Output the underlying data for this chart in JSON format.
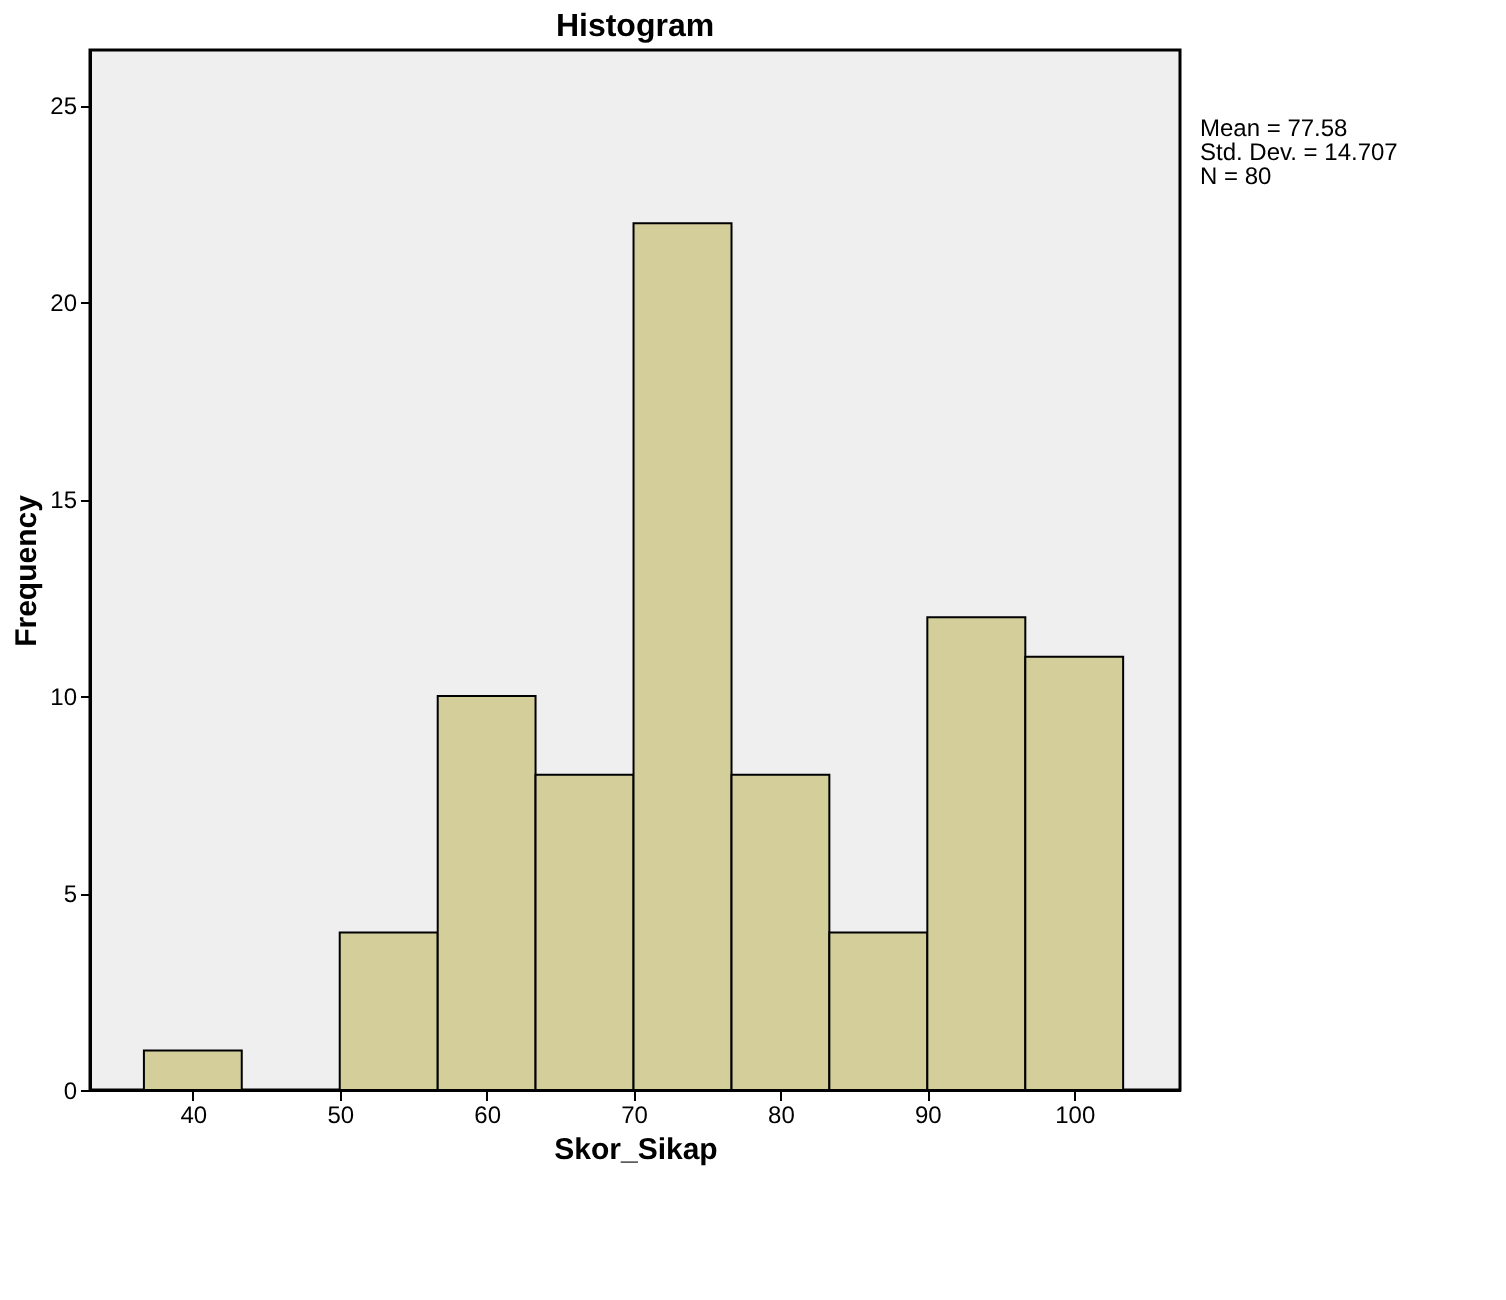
{
  "chart_data": {
    "type": "histogram",
    "title": "Histogram",
    "xlabel": "Skor_Sikap",
    "ylabel": "Frequency",
    "bins": [
      36.67,
      43.33,
      50,
      56.67,
      63.33,
      70,
      76.67,
      83.33,
      90,
      96.67,
      103.33
    ],
    "values": [
      1,
      0,
      4,
      10,
      8,
      22,
      8,
      4,
      12,
      11
    ],
    "color": "#d3ce9a",
    "xlim": [
      33.0,
      107.2
    ],
    "xticks": [
      40,
      50,
      60,
      70,
      80,
      90,
      100
    ],
    "ylim": [
      0,
      26.4
    ],
    "yticks": [
      0,
      5,
      10,
      15,
      20,
      25
    ],
    "grid": false,
    "annotations": [
      "Mean = 77.58",
      "Std. Dev. = 14.707",
      "N = 80"
    ]
  }
}
